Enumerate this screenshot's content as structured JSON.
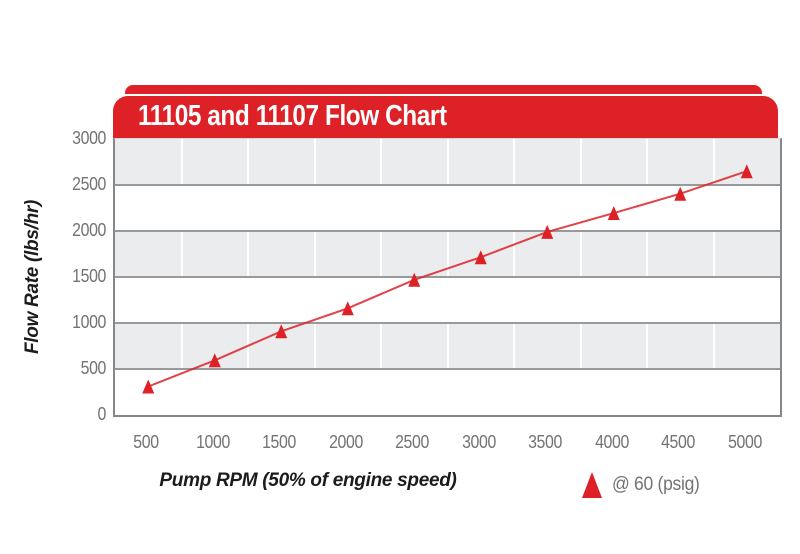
{
  "title_bar": {
    "text": "11105 and 11107 Flow Chart"
  },
  "chart_data": {
    "type": "line",
    "title": "11105 and 11107 Flow Chart",
    "xlabel": "Pump RPM (50% of engine speed)",
    "ylabel": "Flow Rate (lbs/hr)",
    "categories": [
      500,
      1000,
      1500,
      2000,
      2500,
      3000,
      3500,
      4000,
      4500,
      5000
    ],
    "series": [
      {
        "name": "@ 60 (psig)",
        "marker": "triangle-up",
        "color": "#de2127",
        "values": [
          310,
          595,
          910,
          1160,
          1470,
          1715,
          1990,
          2195,
          2405,
          2650
        ]
      }
    ],
    "ylim": [
      0,
      3000
    ],
    "y_ticks": [
      0,
      500,
      1000,
      1500,
      2000,
      2500,
      3000
    ],
    "grid": "horizontal gray bands with gray rules and white column separators",
    "legend_position": "bottom-right"
  },
  "legend": {
    "marker": "red-triangle-up",
    "label": "@ 60 (psig)"
  },
  "colors": {
    "accent_red": "#de2127",
    "band_gray": "#ebecee",
    "gridline_gray": "#98999b",
    "axis_border_gray": "#85878a",
    "tick_text_gray": "#717375",
    "axis_title_black": "#1c1c1e",
    "title_text_white": "#ffffff"
  }
}
